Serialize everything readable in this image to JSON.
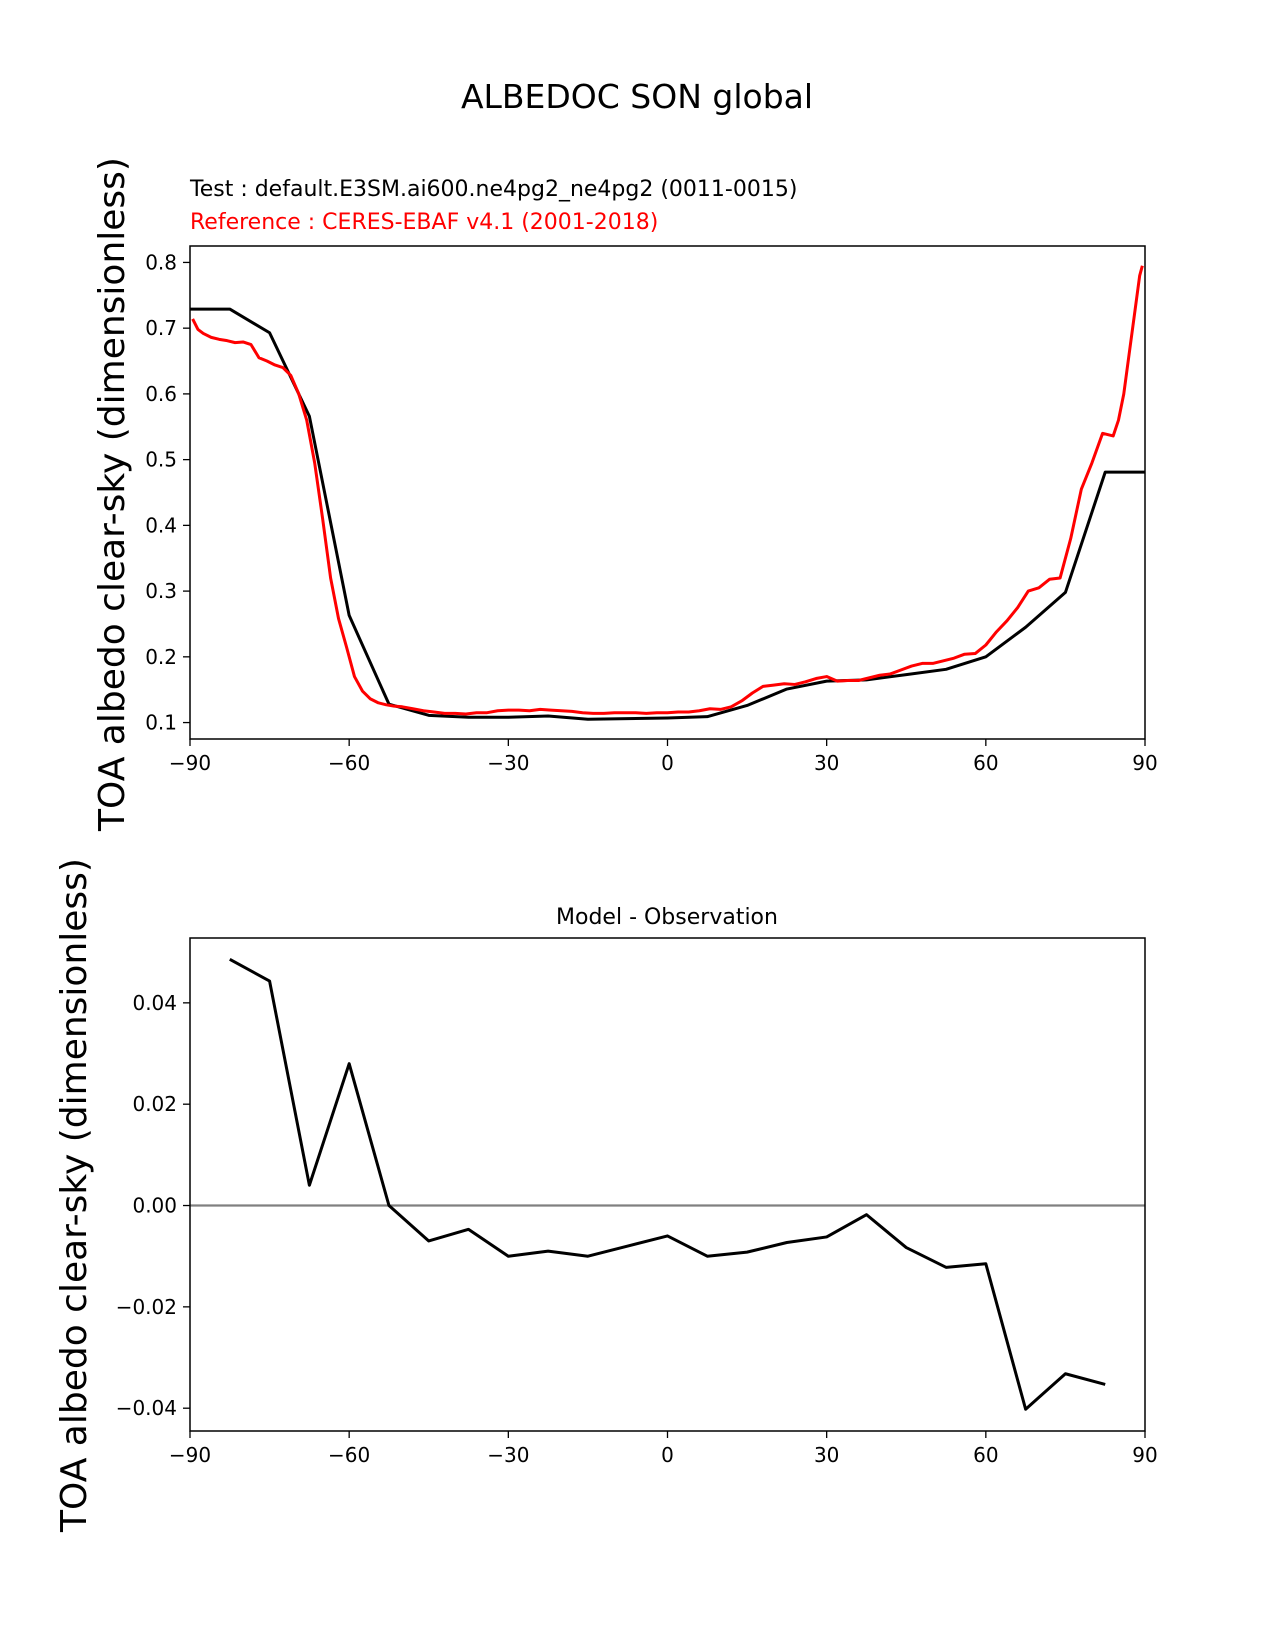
{
  "figure": {
    "title": "ALBEDOC SON global"
  },
  "chart_data": [
    {
      "type": "line",
      "test_label": "Test : default.E3SM.ai600.ne4pg2_ne4pg2 (0011-0015)",
      "reference_label": "Reference : CERES-EBAF v4.1 (2001-2018)",
      "ylabel": "TOA albedo clear-sky (dimensionless)",
      "xlabel": "",
      "xlim": [
        -90,
        90
      ],
      "ylim": [
        0.075,
        0.825
      ],
      "xticks": [
        -90,
        -60,
        -30,
        0,
        30,
        60,
        90
      ],
      "xtick_labels": [
        "−90",
        "−60",
        "−30",
        "0",
        "30",
        "60",
        "90"
      ],
      "yticks": [
        0.1,
        0.2,
        0.3,
        0.4,
        0.5,
        0.6,
        0.7,
        0.8
      ],
      "ytick_labels": [
        "0.1",
        "0.2",
        "0.3",
        "0.4",
        "0.5",
        "0.6",
        "0.7",
        "0.8"
      ],
      "series": [
        {
          "name": "Test",
          "color": "#000000",
          "x": [
            -90,
            -82.5,
            -75,
            -67.5,
            -60,
            -52.5,
            -45,
            -37.5,
            -30,
            -22.5,
            -15,
            -7.5,
            0,
            7.5,
            15,
            22.5,
            30,
            37.5,
            45,
            52.5,
            60,
            67.5,
            75,
            82.5,
            90
          ],
          "y": [
            0.729,
            0.729,
            0.693,
            0.566,
            0.263,
            0.128,
            0.111,
            0.108,
            0.108,
            0.11,
            0.105,
            0.106,
            0.107,
            0.109,
            0.126,
            0.151,
            0.163,
            0.165,
            0.173,
            0.181,
            0.2,
            0.245,
            0.298,
            0.481,
            0.481
          ]
        },
        {
          "name": "Reference",
          "color": "#ff0000",
          "x": [
            -89.5,
            -88.5,
            -87.5,
            -86,
            -84.5,
            -83,
            -81.5,
            -80,
            -78.5,
            -77,
            -75.5,
            -74,
            -72.5,
            -71,
            -69.5,
            -68,
            -66.5,
            -65,
            -63.5,
            -62,
            -60.5,
            -59,
            -57.5,
            -56,
            -54.5,
            -53,
            -51.5,
            -50,
            -48,
            -46,
            -44,
            -42,
            -40,
            -38,
            -36,
            -34,
            -32,
            -30,
            -28,
            -26,
            -24,
            -22,
            -20,
            -18,
            -16,
            -14,
            -12,
            -10,
            -8,
            -6,
            -4,
            -2,
            0,
            2,
            4,
            6,
            8,
            10,
            12,
            14,
            16,
            18,
            20,
            22,
            24,
            26,
            28,
            30,
            32,
            34,
            36,
            38,
            40,
            42,
            44,
            46,
            48,
            50,
            52,
            54,
            56,
            58,
            60,
            62,
            64,
            66,
            68,
            70,
            72,
            74,
            76,
            78,
            80,
            82,
            84,
            85,
            86,
            87,
            88,
            89,
            89.5
          ],
          "y": [
            0.714,
            0.698,
            0.692,
            0.686,
            0.683,
            0.681,
            0.678,
            0.679,
            0.675,
            0.655,
            0.65,
            0.644,
            0.64,
            0.628,
            0.6,
            0.56,
            0.495,
            0.41,
            0.32,
            0.258,
            0.215,
            0.17,
            0.148,
            0.136,
            0.13,
            0.127,
            0.125,
            0.124,
            0.121,
            0.118,
            0.116,
            0.114,
            0.114,
            0.113,
            0.115,
            0.115,
            0.118,
            0.119,
            0.119,
            0.118,
            0.12,
            0.119,
            0.118,
            0.117,
            0.115,
            0.114,
            0.114,
            0.115,
            0.115,
            0.115,
            0.114,
            0.115,
            0.115,
            0.116,
            0.116,
            0.118,
            0.121,
            0.12,
            0.124,
            0.133,
            0.145,
            0.155,
            0.157,
            0.159,
            0.158,
            0.162,
            0.167,
            0.17,
            0.163,
            0.164,
            0.164,
            0.168,
            0.172,
            0.174,
            0.18,
            0.186,
            0.19,
            0.19,
            0.194,
            0.198,
            0.204,
            0.205,
            0.218,
            0.238,
            0.255,
            0.275,
            0.3,
            0.305,
            0.318,
            0.32,
            0.38,
            0.455,
            0.495,
            0.54,
            0.536,
            0.56,
            0.6,
            0.66,
            0.72,
            0.78,
            0.795
          ]
        }
      ]
    },
    {
      "type": "line",
      "title": "Model - Observation",
      "ylabel": "TOA albedo clear-sky (dimensionless)",
      "xlabel": "",
      "xlim": [
        -90,
        90
      ],
      "ylim": [
        -0.0445,
        0.0528
      ],
      "xticks": [
        -90,
        -60,
        -30,
        0,
        30,
        60,
        90
      ],
      "xtick_labels": [
        "−90",
        "−60",
        "−30",
        "0",
        "30",
        "60",
        "90"
      ],
      "yticks": [
        -0.04,
        -0.02,
        0.0,
        0.02,
        0.04
      ],
      "ytick_labels": [
        "−0.04",
        "−0.02",
        "0.00",
        "0.02",
        "0.04"
      ],
      "zero_line_color": "#808080",
      "series": [
        {
          "name": "Model - Observation",
          "color": "#000000",
          "x": [
            -82.5,
            -75,
            -67.5,
            -60,
            -52.5,
            -45,
            -37.5,
            -30,
            -22.5,
            -15,
            -7.5,
            0,
            7.5,
            15,
            22.5,
            30,
            37.5,
            45,
            52.5,
            60,
            67.5,
            75,
            82.5
          ],
          "y": [
            0.0486,
            0.0443,
            0.004,
            0.028,
            0.0,
            -0.007,
            -0.0047,
            -0.01,
            -0.009,
            -0.01,
            -0.008,
            -0.006,
            -0.01,
            -0.0092,
            -0.0073,
            -0.0062,
            -0.0018,
            -0.0083,
            -0.0122,
            -0.0115,
            -0.0402,
            -0.0332,
            -0.0353
          ]
        }
      ]
    }
  ]
}
